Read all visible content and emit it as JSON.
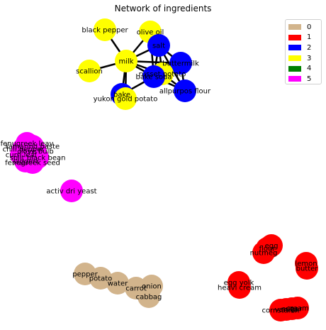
{
  "title": "Network of ingredients",
  "legend": [
    {
      "label": "0",
      "color": "#d2b48c"
    },
    {
      "label": "1",
      "color": "#ff0000"
    },
    {
      "label": "2",
      "color": "#0000ff"
    },
    {
      "label": "3",
      "color": "#ffff00"
    },
    {
      "label": "4",
      "color": "#008000"
    },
    {
      "label": "5",
      "color": "#ff00ff"
    }
  ],
  "nodes": [
    {
      "id": "black_pepper",
      "label": "black pepper",
      "group": "3"
    },
    {
      "id": "olive_oil",
      "label": "olive oil",
      "group": "3"
    },
    {
      "id": "salt",
      "label": "salt",
      "group": "2"
    },
    {
      "id": "milk",
      "label": "milk",
      "group": "3"
    },
    {
      "id": "buttermilk",
      "label": "buttermilk",
      "group": "2"
    },
    {
      "id": "scallion",
      "label": "scallion",
      "group": "3"
    },
    {
      "id": "russet_potato",
      "label": "russet potato",
      "group": "3"
    },
    {
      "id": "baking_soda",
      "label": "bake soda",
      "group": "2"
    },
    {
      "id": "allpurpose_flour",
      "label": "allpurpos flour",
      "group": "2"
    },
    {
      "id": "bake",
      "label": "bake",
      "group": "2"
    },
    {
      "id": "yukon_gold_potato",
      "label": "yukon gold potato",
      "group": "3"
    },
    {
      "id": "m1",
      "label": "fenugreek leav",
      "group": "5"
    },
    {
      "id": "m2",
      "label": "tamarind paste",
      "group": "5"
    },
    {
      "id": "m3",
      "label": "chili pepper",
      "group": "5"
    },
    {
      "id": "m4",
      "label": "clove bulb",
      "group": "5"
    },
    {
      "id": "m5",
      "label": "curri leaf",
      "group": "5"
    },
    {
      "id": "m6",
      "label": "split black bean",
      "group": "5"
    },
    {
      "id": "m7",
      "label": "jaggeri",
      "group": "5"
    },
    {
      "id": "m8",
      "label": "fenugreek seed",
      "group": "5"
    },
    {
      "id": "activ_dri_yeast",
      "label": "activ dri yeast",
      "group": "5"
    },
    {
      "id": "egg",
      "label": "egg",
      "group": "1"
    },
    {
      "id": "flour",
      "label": "flour",
      "group": "1"
    },
    {
      "id": "nutmeg",
      "label": "nutmeg",
      "group": "1"
    },
    {
      "id": "lemon",
      "label": "lemon",
      "group": "1"
    },
    {
      "id": "butter",
      "label": "butter",
      "group": "1"
    },
    {
      "id": "egg_yolk",
      "label": "egg yolk",
      "group": "1"
    },
    {
      "id": "heavy_cream",
      "label": "heavi cream",
      "group": "1"
    },
    {
      "id": "cornstarch",
      "label": "cornstarch",
      "group": "1"
    },
    {
      "id": "vanilla",
      "label": "vanilla",
      "group": "1"
    },
    {
      "id": "sugar",
      "label": "sugar",
      "group": "1"
    },
    {
      "id": "cream",
      "label": "cream",
      "group": "1"
    },
    {
      "id": "pepper",
      "label": "pepper",
      "group": "0"
    },
    {
      "id": "potato",
      "label": "potato",
      "group": "0"
    },
    {
      "id": "water",
      "label": "water",
      "group": "0"
    },
    {
      "id": "carrot",
      "label": "carrot",
      "group": "0"
    },
    {
      "id": "onion",
      "label": "onion",
      "group": "0"
    },
    {
      "id": "cabbage",
      "label": "cabbag",
      "group": "0"
    }
  ],
  "edges": [
    [
      "milk",
      "black_pepper"
    ],
    [
      "milk",
      "olive_oil"
    ],
    [
      "milk",
      "scallion"
    ],
    [
      "milk",
      "salt"
    ],
    [
      "milk",
      "buttermilk"
    ],
    [
      "milk",
      "baking_soda"
    ],
    [
      "milk",
      "bake"
    ],
    [
      "milk",
      "yukon_gold_potato"
    ],
    [
      "milk",
      "russet_potato"
    ],
    [
      "salt",
      "olive_oil"
    ],
    [
      "salt",
      "buttermilk"
    ],
    [
      "salt",
      "baking_soda"
    ],
    [
      "salt",
      "allpurpose_flour"
    ],
    [
      "salt",
      "russet_potato"
    ],
    [
      "buttermilk",
      "baking_soda"
    ],
    [
      "buttermilk",
      "allpurpose_flour"
    ],
    [
      "buttermilk",
      "russet_potato"
    ],
    [
      "baking_soda",
      "allpurpose_flour"
    ],
    [
      "baking_soda",
      "bake"
    ],
    [
      "baking_soda",
      "russet_potato"
    ],
    [
      "olive_oil",
      "baking_soda"
    ],
    [
      "bake",
      "yukon_gold_potato"
    ],
    [
      "allpurpose_flour",
      "russet_potato"
    ]
  ]
}
